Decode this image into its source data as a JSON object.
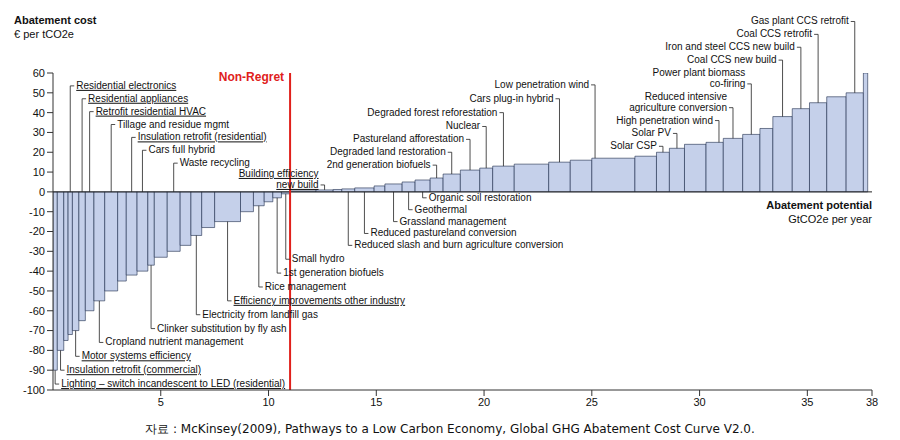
{
  "chart_data": {
    "type": "bar",
    "y_title": "Abatement cost",
    "y_unit": "€ per tCO2e",
    "x_title": "Abatement potential",
    "x_unit": "GtCO2e per year",
    "source": "자료 : McKinsey(2009), Pathways to a Low Carbon Economy, Global GHG Abatement Cost Curve V2.0.",
    "annotations": [
      {
        "text": "Non-Regret",
        "x": 11
      }
    ],
    "categories": [
      "Lighting – switch incandescent to LED (residential)",
      "Insulation retrofit (commercial)",
      null,
      "Residential electronics",
      "Motor systems efficiency",
      "Residential appliances",
      "Retrofit residential HVAC",
      "Cropland nutrient management",
      "Tillage and residue mgmt",
      null,
      "Insulation retrofit (residential)",
      "Cars full hybrid",
      "Clinker substitution by fly ash",
      null,
      "Waste recycling",
      null,
      "Electricity from landfill gas",
      null,
      "Efficiency improvements other industry",
      null,
      "Rice management",
      null,
      "1st generation biofuels",
      "Small hydro",
      null,
      "Building efficiency new build",
      null,
      "Reduced slash and burn agriculture conversion",
      "Reduced pastureland conversion",
      null,
      "Grassland management",
      "Geothermal",
      "Organic soil restoration",
      "2nd generation biofuels",
      "Degraded land restoration",
      "Pastureland afforestation",
      "Nuclear",
      "Degraded forest reforestation",
      null,
      "Cars plug-in hybrid",
      null,
      "Low penetration wind",
      null,
      "Solar CSP",
      "Solar PV",
      null,
      "High penetration wind",
      "Reduced intensive agriculture conversion",
      "Power plant biomass co-firing",
      null,
      "Coal CCS new build",
      "Iron and steel CCS new build",
      "Coal CCS retrofit",
      null,
      "Gas plant CCS retrofit",
      null
    ],
    "values": [
      -90,
      -80,
      -75,
      -72,
      -70,
      -65,
      -60,
      -55,
      -50,
      -45,
      -42,
      -40,
      -37,
      -33,
      -30,
      -27,
      -22,
      -18,
      -15,
      -10,
      -7,
      -5,
      -3,
      -1,
      0.5,
      1,
      1.2,
      1.5,
      2,
      3,
      4,
      5,
      6,
      7,
      9,
      11,
      12,
      13,
      14,
      15,
      16,
      17,
      18,
      20,
      22,
      24,
      25,
      27,
      29,
      32,
      38,
      42,
      45,
      48,
      50,
      60
    ],
    "widths": [
      0.2,
      0.3,
      0.2,
      0.2,
      0.3,
      0.3,
      0.4,
      0.5,
      0.6,
      0.4,
      0.5,
      0.5,
      0.3,
      0.6,
      0.6,
      0.5,
      0.5,
      0.6,
      1.2,
      0.6,
      0.5,
      0.4,
      0.4,
      0.4,
      1.2,
      0.8,
      0.4,
      0.6,
      0.9,
      0.5,
      0.8,
      0.6,
      0.7,
      0.6,
      0.8,
      0.9,
      0.6,
      1.0,
      1.6,
      1.0,
      1.0,
      2.0,
      1.0,
      0.6,
      0.7,
      1.0,
      0.8,
      0.9,
      0.8,
      0.6,
      0.9,
      0.8,
      0.8,
      0.9,
      0.8,
      0.2
    ],
    "color": "#c5d0ea",
    "xlim": [
      0,
      38
    ],
    "ylim": [
      -100,
      60
    ],
    "xticks": [
      5,
      10,
      15,
      20,
      25,
      30,
      35,
      38
    ],
    "yticks": [
      -100,
      -90,
      -80,
      -70,
      -60,
      -50,
      -40,
      -30,
      -20,
      -10,
      0,
      10,
      20,
      30,
      40,
      50,
      60
    ],
    "grid": false
  }
}
